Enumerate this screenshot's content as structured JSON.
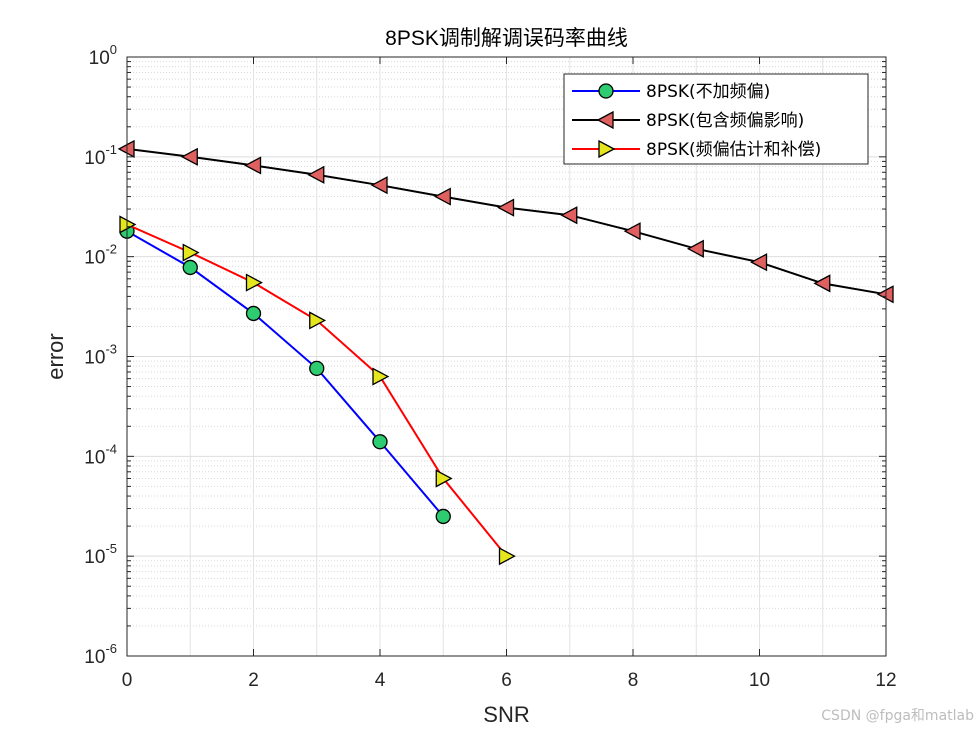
{
  "chart_data": {
    "type": "line",
    "title": "8PSK调制解调误码率曲线",
    "xlabel": "SNR",
    "ylabel": "error",
    "xlim": [
      0,
      12
    ],
    "ylim": [
      1e-06,
      1
    ],
    "yscale": "log",
    "grid": true,
    "minor_grid": true,
    "legend_position": "top-right",
    "x_ticks": [
      0,
      2,
      4,
      6,
      8,
      10,
      12
    ],
    "y_tick_exponents": [
      -6,
      -5,
      -4,
      -3,
      -2,
      -1,
      0
    ],
    "series": [
      {
        "name": "8PSK(不加频偏)",
        "color": "#0000ff",
        "marker": "circle",
        "marker_color": "#2ecc71",
        "x": [
          0,
          1,
          2,
          3,
          4,
          5
        ],
        "y": [
          0.018,
          0.0078,
          0.0027,
          0.00076,
          0.00014,
          2.5e-05
        ]
      },
      {
        "name": "8PSK(包含频偏影响)",
        "color": "#000000",
        "marker": "triangle-left",
        "marker_color": "#e06060",
        "x": [
          0,
          1,
          2,
          3,
          4,
          5,
          6,
          7,
          8,
          9,
          10,
          11,
          12
        ],
        "y": [
          0.12,
          0.1,
          0.082,
          0.066,
          0.052,
          0.04,
          0.031,
          0.026,
          0.018,
          0.012,
          0.0088,
          0.0054,
          0.0042
        ]
      },
      {
        "name": "8PSK(频偏估计和补偿)",
        "color": "#ff0000",
        "marker": "triangle-right",
        "marker_color": "#e6e61e",
        "x": [
          0,
          1,
          2,
          3,
          4,
          5,
          6
        ],
        "y": [
          0.021,
          0.011,
          0.0055,
          0.0023,
          0.00063,
          6e-05,
          1e-05
        ]
      }
    ]
  },
  "watermark": "CSDN @fpga和matlab"
}
